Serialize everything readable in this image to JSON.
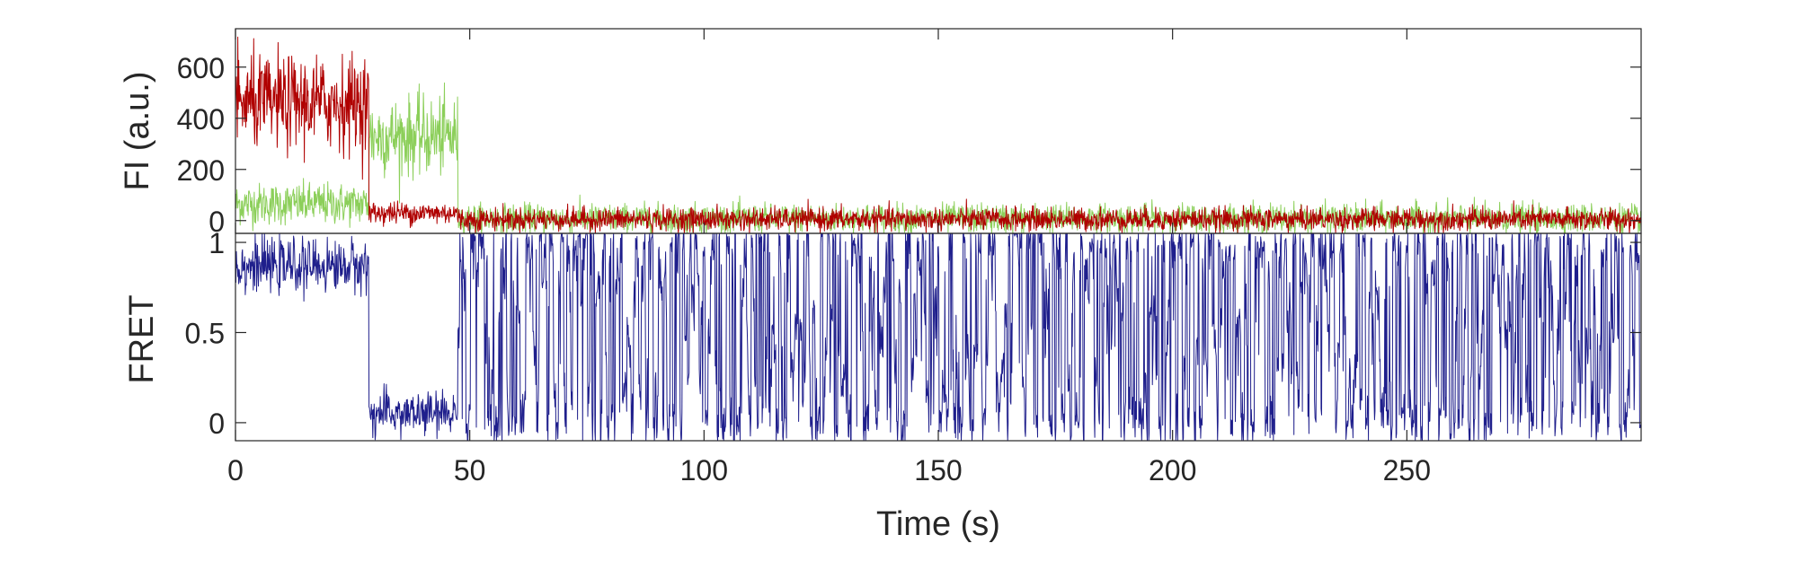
{
  "chart_data": [
    {
      "type": "line",
      "title": "",
      "xlabel": "",
      "ylabel": "FI (a.u.)",
      "xlim": [
        0,
        300
      ],
      "ylim": [
        -50,
        750
      ],
      "yticks": [
        0,
        200,
        400,
        600
      ],
      "grid": false,
      "colors": {
        "green": "#8ccf5a",
        "red": "#b00000"
      },
      "series": [
        {
          "color_key": "green",
          "segments": [
            {
              "x0": 0,
              "x1": 28.5,
              "mean": 65,
              "noise": 40
            },
            {
              "x0": 28.5,
              "x1": 47.5,
              "mean": 330,
              "noise": 75
            },
            {
              "x0": 47.5,
              "x1": 300,
              "mean": 8,
              "noise": 28
            }
          ]
        },
        {
          "color_key": "red",
          "segments": [
            {
              "x0": 0,
              "x1": 28.5,
              "mean": 460,
              "noise": 90
            },
            {
              "x0": 28.5,
              "x1": 47.5,
              "mean": 30,
              "noise": 22
            },
            {
              "x0": 47.5,
              "x1": 300,
              "mean": 5,
              "noise": 22
            }
          ]
        }
      ]
    },
    {
      "type": "line",
      "title": "",
      "xlabel": "Time (s)",
      "ylabel": "FRET",
      "xlim": [
        0,
        300
      ],
      "ylim": [
        -0.1,
        1.05
      ],
      "xticks": [
        0,
        50,
        100,
        150,
        200,
        250
      ],
      "yticks": [
        0,
        0.5,
        1
      ],
      "ytick_labels": [
        "0",
        "0.5",
        "1"
      ],
      "grid": false,
      "colors": {
        "blue": "#1f1f8c"
      },
      "series": [
        {
          "color_key": "blue",
          "segments": [
            {
              "x0": 0,
              "x1": 28.5,
              "mean": 0.87,
              "noise": 0.07,
              "mode": "noisy"
            },
            {
              "x0": 28.5,
              "x1": 47.5,
              "mean": 0.05,
              "noise": 0.06,
              "mode": "noisy"
            },
            {
              "x0": 47.5,
              "x1": 300,
              "mean": 0.5,
              "noise": 0.5,
              "mode": "random"
            }
          ]
        }
      ]
    }
  ]
}
